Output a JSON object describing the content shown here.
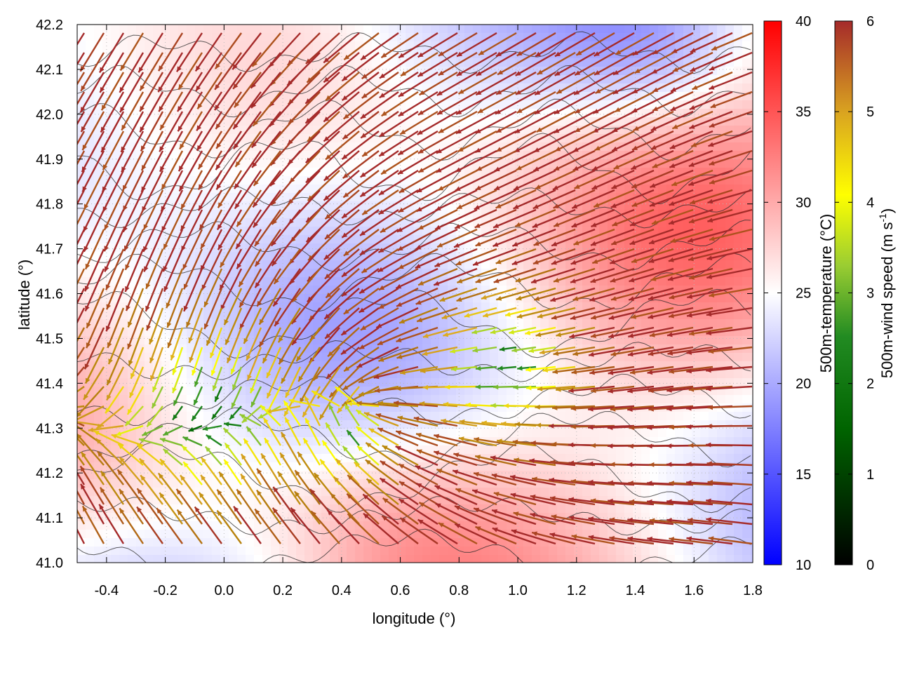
{
  "chart_data": {
    "type": "heatmap",
    "subtype": "vector-field-over-scalar-field",
    "xlabel": "longitude (°)",
    "ylabel": "latitude (°)",
    "xlim": [
      -0.5,
      1.8
    ],
    "ylim": [
      41.0,
      42.2
    ],
    "x_ticks": [
      "-0.4",
      "-0.2",
      "0.0",
      "0.2",
      "0.4",
      "0.6",
      "0.8",
      "1.0",
      "1.2",
      "1.4",
      "1.6",
      "1.8"
    ],
    "y_ticks": [
      "41.0",
      "41.1",
      "41.2",
      "41.3",
      "41.4",
      "41.5",
      "41.6",
      "41.7",
      "41.8",
      "41.9",
      "42.0",
      "42.1",
      "42.2"
    ],
    "grid": true,
    "contours": "terrain elevation (dark grey lines)",
    "temperature_colorbar": {
      "label": "500m-temperature (°C)",
      "range": [
        10,
        40
      ],
      "ticks": [
        "10",
        "15",
        "20",
        "25",
        "30",
        "35",
        "40"
      ],
      "colors": [
        "#0000ff",
        "#ffffff",
        "#ff0000"
      ]
    },
    "wind_colorbar": {
      "label_main": "500m-wind speed (m s",
      "label_sup": "-1",
      "label_end": ")",
      "range": [
        0,
        6
      ],
      "ticks": [
        "0",
        "1",
        "2",
        "3",
        "4",
        "5",
        "6"
      ],
      "colors": [
        "#000000",
        "#006400",
        "#228b22",
        "#9acd32",
        "#ffff00",
        "#daa520",
        "#b8860b",
        "#a52a2a"
      ]
    },
    "field_summary": {
      "temperature_range_shown": [
        14,
        36
      ],
      "wind_speed_range_shown": [
        0.3,
        6
      ],
      "dominant_wind_direction": "westward with inflow toward the basin near 0.5°E 41.35°N",
      "weak_wind_zones": [
        "-0.2–0.3°E, 41.25–41.6°N",
        "0.9–1.1°E, 41.25–41.45°N"
      ]
    }
  }
}
